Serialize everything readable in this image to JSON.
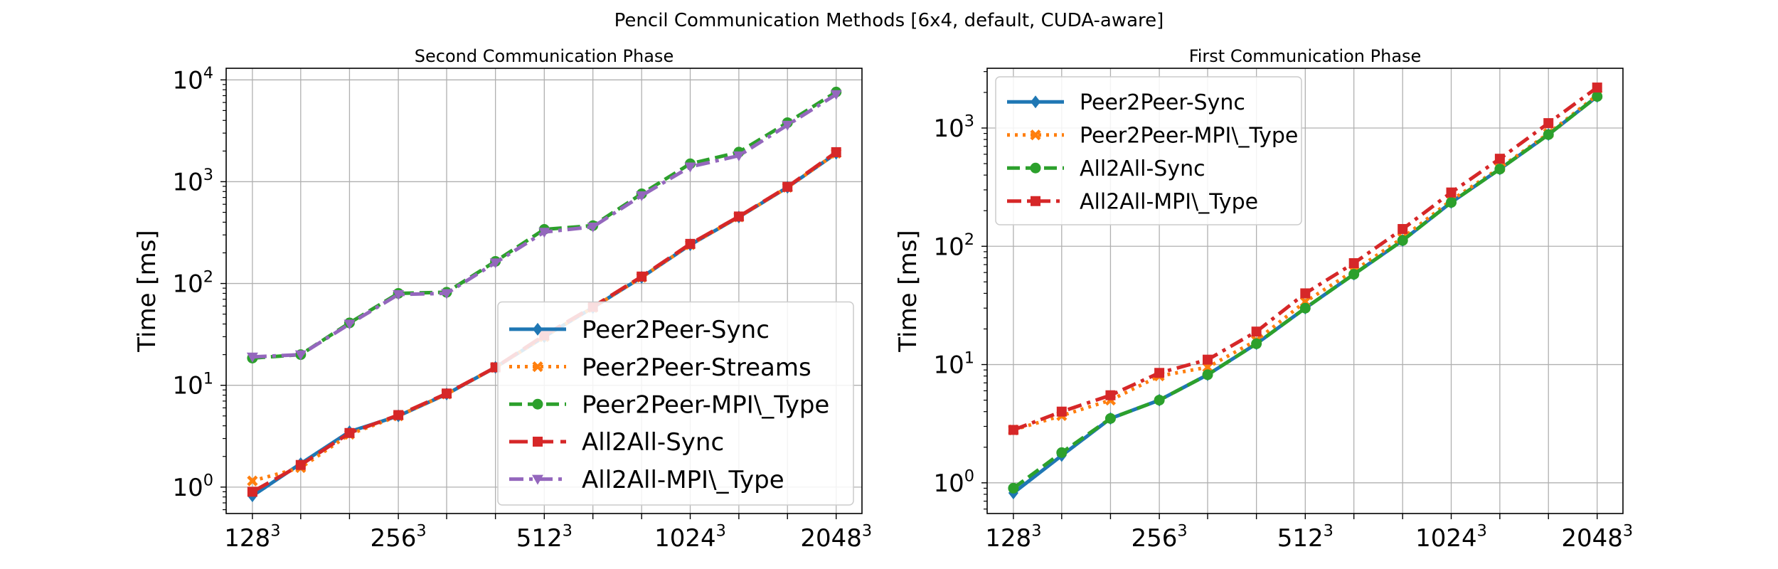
{
  "figure_title": "Pencil Communication Methods [6x4, default, CUDA-aware]",
  "chart_data": [
    {
      "type": "line",
      "title": "Second Communication Phase",
      "xlabel": "",
      "ylabel": "Time [ms]",
      "x_scale": "log2",
      "y_scale": "log10",
      "x": [
        128,
        161,
        203,
        256,
        322,
        406,
        512,
        645,
        813,
        1024,
        1290,
        1625,
        2048
      ],
      "xlim": [
        113,
        2315
      ],
      "ylim": [
        0.55,
        13000
      ],
      "x_ticks": [
        {
          "value": 128,
          "base": "128",
          "exp": "3"
        },
        {
          "value": 256,
          "base": "256",
          "exp": "3"
        },
        {
          "value": 512,
          "base": "512",
          "exp": "3"
        },
        {
          "value": 1024,
          "base": "1024",
          "exp": "3"
        },
        {
          "value": 2048,
          "base": "2048",
          "exp": "3"
        }
      ],
      "y_ticks": [
        {
          "value": 1,
          "base": "10",
          "exp": "0"
        },
        {
          "value": 10,
          "base": "10",
          "exp": "1"
        },
        {
          "value": 100,
          "base": "10",
          "exp": "2"
        },
        {
          "value": 1000,
          "base": "10",
          "exp": "3"
        },
        {
          "value": 10000,
          "base": "10",
          "exp": "4"
        }
      ],
      "grid": true,
      "legend_position": "lower-right",
      "legend_font_size": 34,
      "series": [
        {
          "name": "Peer2Peer-Sync",
          "color": "#1f77b4",
          "dash": "solid",
          "marker": "diamond",
          "values": [
            0.82,
            1.7,
            3.5,
            5.0,
            8.2,
            15,
            30,
            58,
            115,
            240,
            450,
            880,
            1900
          ]
        },
        {
          "name": "Peer2Peer-Streams",
          "color": "#ff7f0e",
          "dash": "dotted",
          "marker": "x",
          "values": [
            1.15,
            1.55,
            3.3,
            5.0,
            8.2,
            15,
            30,
            58,
            115,
            240,
            450,
            880,
            1900
          ]
        },
        {
          "name": "Peer2Peer-MPI\\_Type",
          "color": "#2ca02c",
          "dash": "dashed",
          "marker": "circle",
          "values": [
            18.5,
            20,
            41,
            80,
            82,
            165,
            340,
            370,
            760,
            1500,
            1950,
            3800,
            7600
          ]
        },
        {
          "name": "All2All-Sync",
          "color": "#d62728",
          "dash": "longdash",
          "marker": "square",
          "values": [
            0.9,
            1.65,
            3.4,
            5.1,
            8.3,
            15,
            31,
            59,
            117,
            245,
            455,
            890,
            1950
          ]
        },
        {
          "name": "All2All-MPI\\_Type",
          "color": "#9467bd",
          "dash": "dashdot",
          "marker": "triangle-down",
          "values": [
            19,
            20,
            40,
            78,
            80,
            160,
            320,
            360,
            730,
            1400,
            1800,
            3600,
            7200
          ]
        }
      ]
    },
    {
      "type": "line",
      "title": "First Communication Phase",
      "xlabel": "",
      "ylabel": "Time [ms]",
      "x_scale": "log2",
      "y_scale": "log10",
      "x": [
        128,
        161,
        203,
        256,
        322,
        406,
        512,
        645,
        813,
        1024,
        1290,
        1625,
        2048
      ],
      "xlim": [
        113,
        2315
      ],
      "ylim": [
        0.55,
        3200
      ],
      "x_ticks": [
        {
          "value": 128,
          "base": "128",
          "exp": "3"
        },
        {
          "value": 256,
          "base": "256",
          "exp": "3"
        },
        {
          "value": 512,
          "base": "512",
          "exp": "3"
        },
        {
          "value": 1024,
          "base": "1024",
          "exp": "3"
        },
        {
          "value": 2048,
          "base": "2048",
          "exp": "3"
        }
      ],
      "y_ticks": [
        {
          "value": 1,
          "base": "10",
          "exp": "0"
        },
        {
          "value": 10,
          "base": "10",
          "exp": "1"
        },
        {
          "value": 100,
          "base": "10",
          "exp": "2"
        },
        {
          "value": 1000,
          "base": "10",
          "exp": "3"
        }
      ],
      "grid": true,
      "legend_position": "upper-left",
      "legend_font_size": 30,
      "series": [
        {
          "name": "Peer2Peer-Sync",
          "color": "#1f77b4",
          "dash": "solid",
          "marker": "diamond",
          "values": [
            0.82,
            1.7,
            3.5,
            5.0,
            8.2,
            15,
            30,
            58,
            112,
            235,
            450,
            880,
            1850
          ]
        },
        {
          "name": "Peer2Peer-MPI\\_Type",
          "color": "#ff7f0e",
          "dash": "dotted",
          "marker": "x",
          "values": [
            2.8,
            3.7,
            5.0,
            8.0,
            9.5,
            16,
            34,
            62,
            118,
            245,
            460,
            900,
            1900
          ]
        },
        {
          "name": "All2All-Sync",
          "color": "#2ca02c",
          "dash": "dashed",
          "marker": "circle",
          "values": [
            0.9,
            1.8,
            3.5,
            5.0,
            8.2,
            15,
            30,
            58,
            112,
            235,
            450,
            880,
            1850
          ]
        },
        {
          "name": "All2All-MPI\\_Type",
          "color": "#d62728",
          "dash": "dashdot",
          "marker": "square",
          "values": [
            2.8,
            4.0,
            5.5,
            8.5,
            11,
            19,
            40,
            72,
            140,
            285,
            550,
            1100,
            2200
          ]
        }
      ]
    }
  ]
}
